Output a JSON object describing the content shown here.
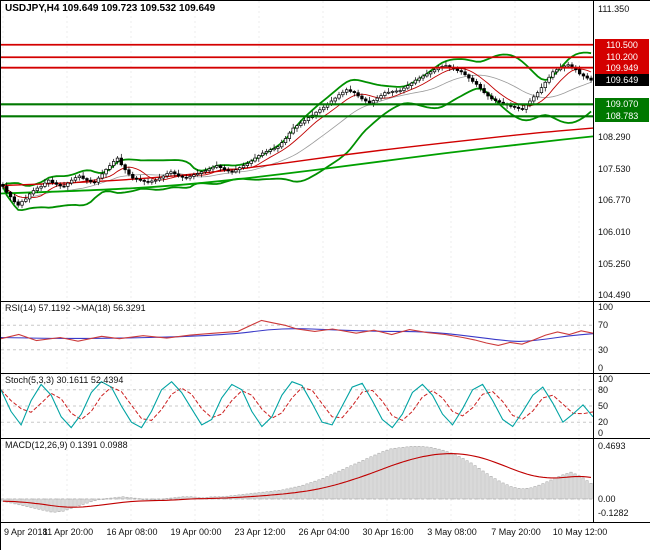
{
  "header": {
    "ohlc_line": "USDJPY,H4 109.649 109.723 109.532 109.649"
  },
  "panels": {
    "rsi": {
      "label": "RSI(14) 57.1192 ->MA(18) 56.3291"
    },
    "stoch": {
      "label": "Stoch(5,3,3) 30.1611 52.4394"
    },
    "macd": {
      "label": "MACD(12,26,9) 0.1391 0.0988"
    }
  },
  "colors": {
    "resistance": "#d40000",
    "support": "#007800",
    "bands": "#009000",
    "band_mid": "#9a9a9a",
    "ma_fast": "#c00000",
    "ma_slow_red": "#d00000",
    "ma_slow_green": "#00a000",
    "bull": "#ffffff",
    "bear": "#000000",
    "rsi_line": "#cc3a3a",
    "rsi_ma": "#3a3ac8",
    "stoch_line": "#00a3a3",
    "stoch_signal": "#cc2020",
    "macd_hist_fill": "#dcdcdc",
    "macd_hist_stroke": "#a0a0a0",
    "macd_signal": "#c00000",
    "grid": "#ececec",
    "ind_level": "#c8c8c8"
  },
  "price_axis": {
    "plain": [
      {
        "text": "111.350",
        "value": 111.35
      },
      {
        "text": "108.290",
        "value": 108.29
      },
      {
        "text": "107.530",
        "value": 107.53
      },
      {
        "text": "106.770",
        "value": 106.77
      },
      {
        "text": "106.010",
        "value": 106.01
      },
      {
        "text": "105.250",
        "value": 105.25
      },
      {
        "text": "104.490",
        "value": 104.49
      }
    ],
    "badges": [
      {
        "text": "110.500",
        "value": 110.5,
        "type": "red"
      },
      {
        "text": "110.200",
        "value": 110.2,
        "type": "red"
      },
      {
        "text": "109.949",
        "value": 109.949,
        "type": "red"
      },
      {
        "text": "109.649",
        "value": 109.649,
        "type": "black"
      },
      {
        "text": "109.070",
        "value": 109.07,
        "type": "green"
      },
      {
        "text": "108.783",
        "value": 108.783,
        "type": "green"
      }
    ]
  },
  "rsi_axis": [
    {
      "text": "100",
      "value": 100
    },
    {
      "text": "70",
      "value": 70
    },
    {
      "text": "30",
      "value": 30
    },
    {
      "text": "0",
      "value": 0
    }
  ],
  "stoch_axis": [
    {
      "text": "100",
      "value": 100
    },
    {
      "text": "80",
      "value": 80
    },
    {
      "text": "50",
      "value": 50
    },
    {
      "text": "20",
      "value": 20
    },
    {
      "text": "0",
      "value": 0
    }
  ],
  "macd_axis": [
    {
      "text": "0.4693",
      "value": 0.4693
    },
    {
      "text": "0.00",
      "value": 0
    },
    {
      "text": "-0.1282",
      "value": -0.1282
    }
  ],
  "time_axis": {
    "labels": [
      "9 Apr 2018",
      "11 Apr 20:00",
      "16 Apr 08:00",
      "19 Apr 00:00",
      "23 Apr 12:00",
      "26 Apr 04:00",
      "30 Apr 16:00",
      "3 May 08:00",
      "7 May 20:00",
      "10 May 12:00"
    ]
  },
  "chart_data": [
    {
      "type": "candlestick",
      "title": "USDJPY,H4",
      "timeframe": "H4",
      "ohlc_current": {
        "open": 109.649,
        "high": 109.723,
        "low": 109.532,
        "close": 109.649
      },
      "ylim": [
        104.49,
        111.35
      ],
      "x_range": [
        "9 Apr 2018",
        "10 May 12:00"
      ],
      "first_open": 107.15,
      "closes": [
        107.1,
        106.96,
        106.85,
        106.73,
        106.65,
        106.74,
        106.8,
        106.92,
        107.0,
        107.06,
        107.1,
        107.18,
        107.25,
        107.19,
        107.15,
        107.11,
        107.1,
        107.18,
        107.25,
        107.31,
        107.35,
        107.29,
        107.25,
        107.21,
        107.2,
        107.3,
        107.4,
        107.51,
        107.6,
        107.7,
        107.78,
        107.62,
        107.5,
        107.39,
        107.3,
        107.27,
        107.25,
        107.22,
        107.2,
        107.23,
        107.25,
        107.3,
        107.35,
        107.41,
        107.45,
        107.4,
        107.35,
        107.32,
        107.3,
        107.34,
        107.38,
        107.41,
        107.45,
        107.48,
        107.52,
        107.56,
        107.6,
        107.55,
        107.5,
        107.47,
        107.45,
        107.5,
        107.55,
        107.6,
        107.65,
        107.71,
        107.78,
        107.84,
        107.9,
        107.94,
        107.98,
        108.01,
        108.05,
        108.15,
        108.25,
        108.38,
        108.5,
        108.56,
        108.62,
        108.68,
        108.75,
        108.81,
        108.88,
        108.94,
        109.0,
        109.07,
        109.15,
        109.22,
        109.3,
        109.36,
        109.42,
        109.38,
        109.35,
        109.27,
        109.2,
        109.15,
        109.1,
        109.16,
        109.22,
        109.28,
        109.35,
        109.36,
        109.38,
        109.39,
        109.4,
        109.46,
        109.52,
        109.58,
        109.65,
        109.7,
        109.75,
        109.8,
        109.85,
        109.9,
        109.95,
        109.98,
        110.0,
        109.96,
        109.92,
        109.88,
        109.85,
        109.78,
        109.7,
        109.62,
        109.55,
        109.45,
        109.35,
        109.27,
        109.2,
        109.16,
        109.12,
        109.08,
        109.05,
        109.02,
        109.0,
        108.97,
        108.95,
        109.05,
        109.15,
        109.25,
        109.35,
        109.47,
        109.6,
        109.72,
        109.85,
        109.9,
        109.95,
        109.99,
        110.02,
        109.96,
        109.9,
        109.8,
        109.75,
        109.7,
        109.649
      ],
      "levels": {
        "resistance": [
          110.5,
          110.2,
          109.949
        ],
        "support": [
          109.07,
          108.783
        ],
        "current_price": 109.649
      },
      "bollinger": {
        "period": 20,
        "deviation": 2
      },
      "ma_red": [
        [
          0,
          107.12
        ],
        [
          0.15,
          107.2
        ],
        [
          0.3,
          107.35
        ],
        [
          0.45,
          107.6
        ],
        [
          0.6,
          107.9
        ],
        [
          0.75,
          108.15
        ],
        [
          0.9,
          108.38
        ],
        [
          1,
          108.5
        ]
      ],
      "ma_green": [
        [
          0,
          106.93
        ],
        [
          0.15,
          107.0
        ],
        [
          0.3,
          107.12
        ],
        [
          0.45,
          107.35
        ],
        [
          0.6,
          107.62
        ],
        [
          0.75,
          107.9
        ],
        [
          0.9,
          108.15
        ],
        [
          1,
          108.3
        ]
      ]
    },
    {
      "type": "line",
      "name": "RSI",
      "params": "RSI(14)",
      "value": 57.1192,
      "ma_value": 56.3291,
      "levels": [
        70,
        30
      ],
      "ylim": [
        0,
        100
      ],
      "rsi_anchors": [
        [
          0,
          48
        ],
        [
          0.03,
          55
        ],
        [
          0.06,
          45
        ],
        [
          0.1,
          50
        ],
        [
          0.13,
          44
        ],
        [
          0.17,
          52
        ],
        [
          0.2,
          48
        ],
        [
          0.24,
          53
        ],
        [
          0.28,
          49
        ],
        [
          0.32,
          54
        ],
        [
          0.36,
          57
        ],
        [
          0.4,
          60
        ],
        [
          0.44,
          78
        ],
        [
          0.46,
          74
        ],
        [
          0.48,
          70
        ],
        [
          0.5,
          64
        ],
        [
          0.53,
          60
        ],
        [
          0.56,
          64
        ],
        [
          0.6,
          57
        ],
        [
          0.63,
          62
        ],
        [
          0.66,
          55
        ],
        [
          0.69,
          63
        ],
        [
          0.72,
          58
        ],
        [
          0.75,
          55
        ],
        [
          0.78,
          50
        ],
        [
          0.8,
          46
        ],
        [
          0.82,
          41
        ],
        [
          0.84,
          37
        ],
        [
          0.86,
          42
        ],
        [
          0.88,
          39
        ],
        [
          0.9,
          46
        ],
        [
          0.92,
          54
        ],
        [
          0.94,
          59
        ],
        [
          0.96,
          55
        ],
        [
          0.98,
          61
        ],
        [
          1,
          57.1
        ]
      ],
      "ma_anchors": [
        [
          0,
          50
        ],
        [
          0.1,
          48
        ],
        [
          0.2,
          49
        ],
        [
          0.3,
          51
        ],
        [
          0.4,
          56
        ],
        [
          0.45,
          63
        ],
        [
          0.5,
          65
        ],
        [
          0.55,
          63
        ],
        [
          0.6,
          61
        ],
        [
          0.65,
          60
        ],
        [
          0.7,
          60
        ],
        [
          0.75,
          57
        ],
        [
          0.8,
          51
        ],
        [
          0.85,
          45
        ],
        [
          0.88,
          43
        ],
        [
          0.92,
          47
        ],
        [
          0.96,
          53
        ],
        [
          1,
          56.3
        ]
      ]
    },
    {
      "type": "line",
      "name": "Stochastic",
      "params": "Stoch(5,3,3)",
      "value": 30.1611,
      "signal": 52.4394,
      "levels": [
        80,
        50,
        20
      ],
      "ylim": [
        0,
        100
      ],
      "k_values": [
        80,
        40,
        15,
        60,
        90,
        70,
        30,
        10,
        35,
        75,
        95,
        85,
        50,
        20,
        10,
        40,
        80,
        95,
        75,
        45,
        15,
        25,
        65,
        90,
        80,
        40,
        12,
        30,
        70,
        95,
        88,
        55,
        20,
        15,
        50,
        85,
        92,
        60,
        25,
        10,
        35,
        75,
        90,
        70,
        35,
        15,
        45,
        80,
        90,
        60,
        25,
        12,
        40,
        70,
        85,
        55,
        20,
        35,
        52,
        30
      ]
    },
    {
      "type": "bar",
      "name": "MACD",
      "params": "MACD(12,26,9)",
      "value": 0.1391,
      "signal": 0.0988,
      "ylim": [
        -0.1282,
        0.4693
      ],
      "values": [
        -0.02,
        -0.04,
        -0.06,
        -0.08,
        -0.1,
        -0.12,
        -0.11,
        -0.08,
        -0.05,
        -0.02,
        0.0,
        0.01,
        0.02,
        0.01,
        0.0,
        -0.01,
        0.0,
        0.01,
        0.02,
        0.02,
        0.01,
        0.02,
        0.02,
        0.03,
        0.04,
        0.05,
        0.06,
        0.07,
        0.08,
        0.1,
        0.12,
        0.15,
        0.18,
        0.22,
        0.26,
        0.3,
        0.34,
        0.38,
        0.42,
        0.45,
        0.46,
        0.47,
        0.47,
        0.46,
        0.44,
        0.41,
        0.37,
        0.32,
        0.26,
        0.2,
        0.15,
        0.11,
        0.09,
        0.1,
        0.13,
        0.17,
        0.21,
        0.24,
        0.2,
        0.14
      ]
    }
  ]
}
